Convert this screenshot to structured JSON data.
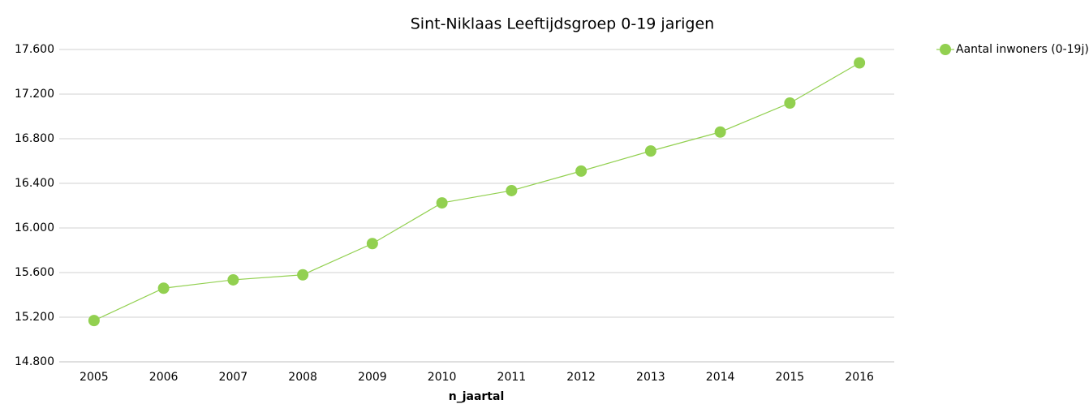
{
  "chart_data": {
    "type": "line",
    "title": "Sint-Niklaas  Leeftijdsgroep 0-19 jarigen",
    "x_label": "n_jaartal",
    "categories": [
      "2005",
      "2006",
      "2007",
      "2008",
      "2009",
      "2010",
      "2011",
      "2012",
      "2013",
      "2014",
      "2015",
      "2016"
    ],
    "series": [
      {
        "name": "Aantal inwoners (0-19j)",
        "color": "#92d050",
        "values": [
          15170,
          15460,
          15535,
          15580,
          15860,
          16225,
          16335,
          16510,
          16690,
          16860,
          17120,
          17480
        ]
      }
    ],
    "ylim": [
      14800,
      17600
    ],
    "yticks": [
      {
        "value": 14800,
        "label": "14.800"
      },
      {
        "value": 15200,
        "label": "15.200"
      },
      {
        "value": 15600,
        "label": "15.600"
      },
      {
        "value": 16000,
        "label": "16.000"
      },
      {
        "value": 16400,
        "label": "16.400"
      },
      {
        "value": 16800,
        "label": "16.800"
      },
      {
        "value": 17200,
        "label": "17.200"
      },
      {
        "value": 17600,
        "label": "17.600"
      }
    ],
    "grid": true,
    "legend": "top-right"
  }
}
